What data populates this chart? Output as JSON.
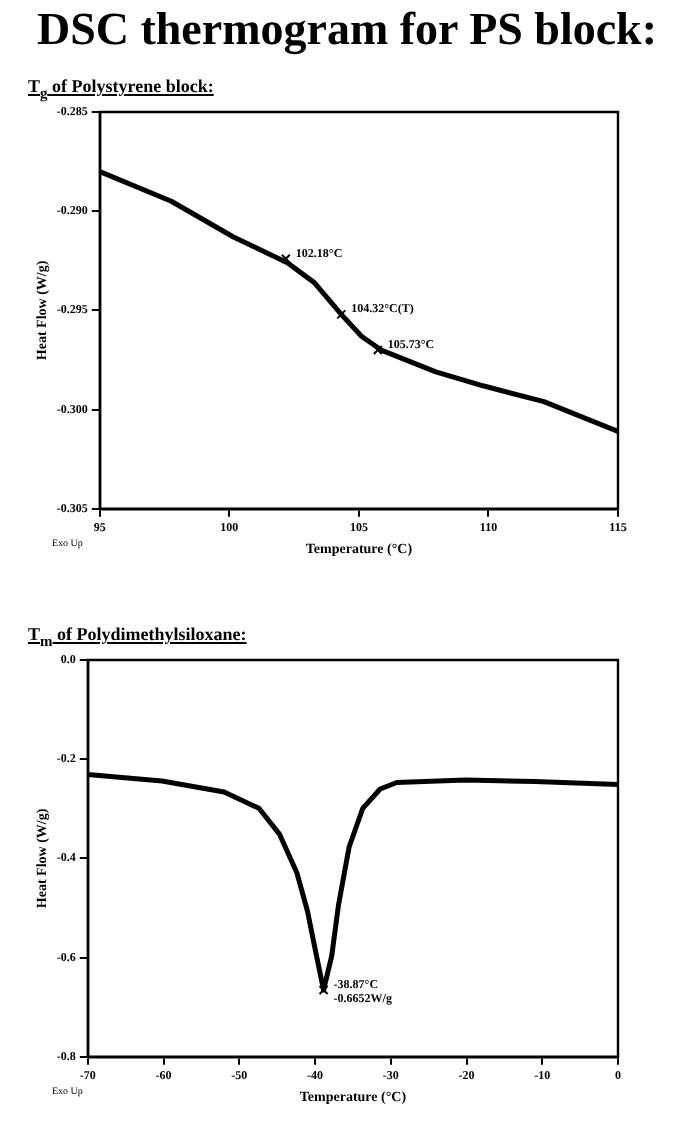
{
  "chart_data": [
    {
      "type": "line",
      "title": "DSC thermogram for PS block:",
      "subtitle": "T$_{g}$ of Polystyrene block:",
      "xlabel": "Temperature (°C)",
      "ylabel": "Heat Flow (W/g)",
      "series": [
        {
          "color": "#000000",
          "x": [
            95,
            97.76,
            100.16,
            102.24,
            103.28,
            104.32,
            105.1,
            105.86,
            107.97,
            109.79,
            112.14,
            115
          ],
          "values": [
            -0.288,
            -0.2895,
            -0.2913,
            -0.2926,
            -0.2936,
            -0.2952,
            -0.2963,
            -0.297,
            -0.2981,
            -0.2988,
            -0.2996,
            -0.3011
          ]
        }
      ],
      "xlim": [
        95,
        115
      ],
      "xticks": [
        95,
        100,
        105,
        110,
        115
      ],
      "ylim": [
        -0.305,
        -0.285
      ],
      "yticks": [
        -0.305,
        {
          "value": -0.3,
          "label": "-0.300"
        },
        -0.295,
        {
          "value": -0.29,
          "label": "-0.290"
        },
        -0.285
      ],
      "annotations": [
        {
          "text": "102.18°C",
          "x": 102.18,
          "y": -0.2924
        },
        {
          "text": "104.32°C(T)",
          "x": 104.32,
          "y": -0.2952
        },
        {
          "text": "105.73°C",
          "x": 105.73,
          "y": -0.297
        },
        "Exo Up"
      ],
      "grid": false,
      "legend": false,
      "marker": "none",
      "line_style": "solid"
    },
    {
      "type": "line",
      "subtitle": "T$_{m}$ of Polydimethylsiloxane:",
      "xlabel": "Temperature (°C)",
      "ylabel": "Heat Flow (W/g)",
      "series": [
        {
          "color": "#000000",
          "x": [
            -70,
            -60.2,
            -52,
            -47.4,
            -44.7,
            -42.4,
            -41,
            -39.8,
            -38.87,
            -37.8,
            -36.9,
            -35.5,
            -33.7,
            -31.4,
            -29.2,
            -20.1,
            -11,
            0
          ],
          "values": [
            -0.231,
            -0.244,
            -0.266,
            -0.299,
            -0.351,
            -0.429,
            -0.506,
            -0.597,
            -0.6652,
            -0.597,
            -0.494,
            -0.377,
            -0.299,
            -0.26,
            -0.247,
            -0.242,
            -0.245,
            -0.251
          ]
        }
      ],
      "xlim": [
        -70,
        0
      ],
      "xticks": [
        -70,
        -60,
        -50,
        -40,
        -30,
        -20,
        -10,
        0
      ],
      "ylim": [
        -0.8,
        0
      ],
      "yticks": [
        {
          "value": -0.8,
          "label": "-0.8"
        },
        {
          "value": -0.6,
          "label": "-0.6"
        },
        {
          "value": -0.4,
          "label": "-0.4"
        },
        {
          "value": -0.2,
          "label": "-0.2"
        },
        {
          "value": 0,
          "label": "0.0"
        }
      ],
      "annotations": [
        {
          "text": "-38.87°C\n-0.6652W/g",
          "x": -38.87,
          "y": -0.6652
        },
        "Exo Up"
      ],
      "grid": false,
      "legend": false,
      "marker": "none",
      "line_style": "solid"
    }
  ]
}
